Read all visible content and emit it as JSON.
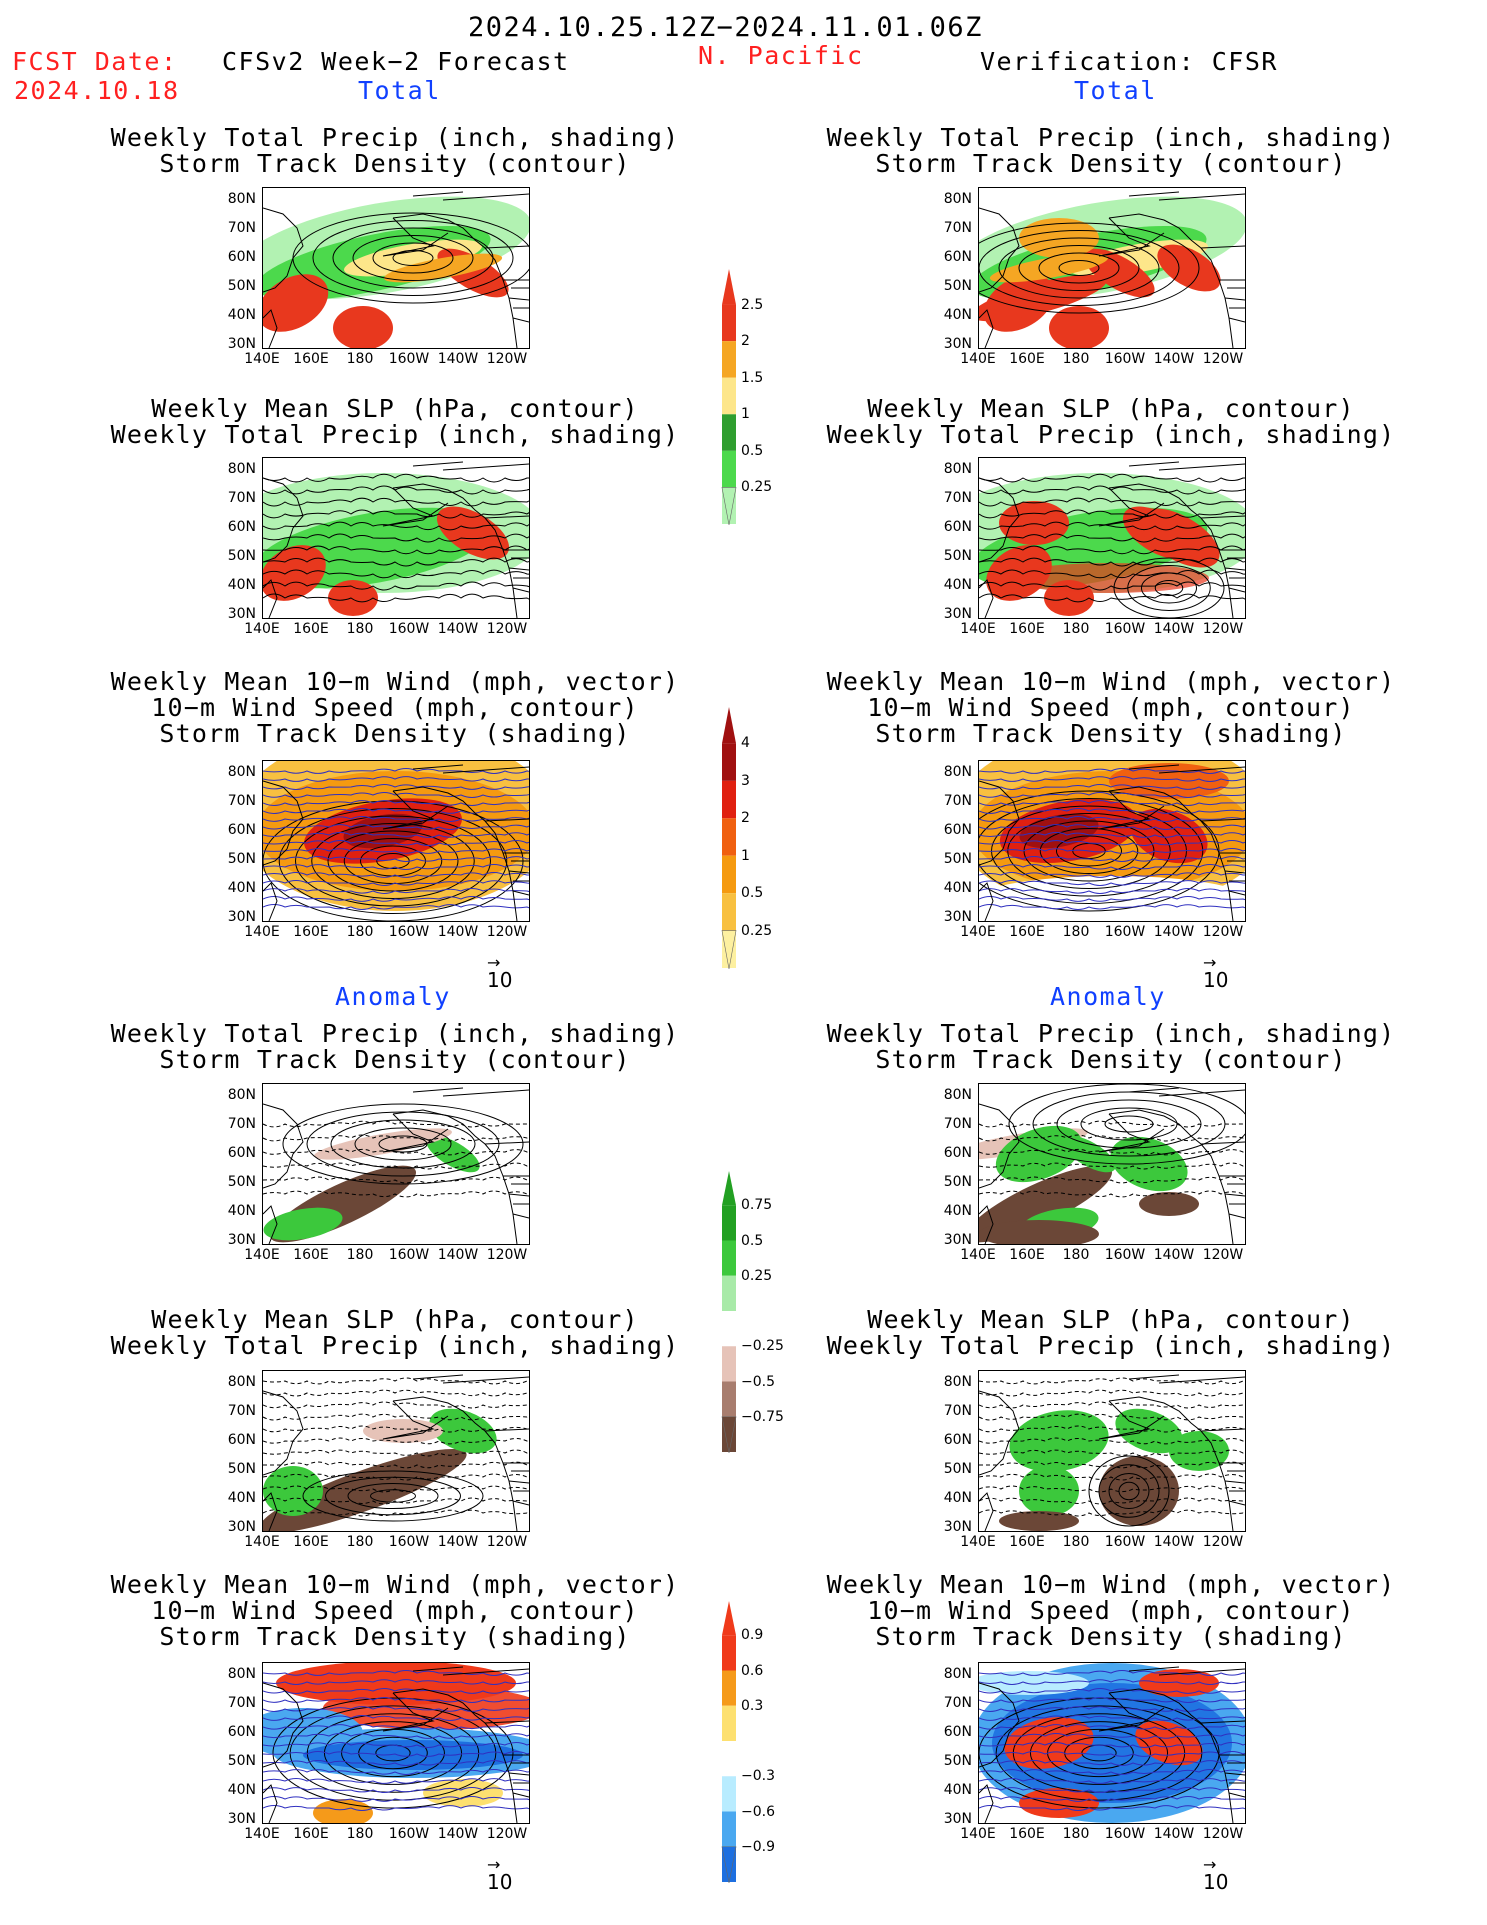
{
  "header": {
    "date_range": "2024.10.25.12Z−2024.11.01.06Z",
    "fcst_label": "FCST Date:",
    "fcst_date": "2024.10.18",
    "model": "CFSv2 Week−2 Forecast",
    "region": "N. Pacific",
    "verification": "Verification: CFSR"
  },
  "sections": {
    "total": "Total",
    "anomaly": "Anomaly"
  },
  "panel_titles": {
    "precip_storm": [
      "Weekly Total Precip (inch, shading)",
      "Storm Track Density (contour)"
    ],
    "slp_precip": [
      "Weekly Mean SLP (hPa, contour)",
      "Weekly Total Precip (inch, shading)"
    ],
    "wind_storm": [
      "Weekly Mean 10−m Wind (mph, vector)",
      "10−m Wind Speed (mph, contour)",
      "Storm Track Density (shading)"
    ]
  },
  "axes": {
    "lat_labels": [
      "80N",
      "70N",
      "60N",
      "50N",
      "40N",
      "30N"
    ],
    "lon_labels": [
      "140E",
      "160E",
      "180",
      "160W",
      "140W",
      "120W"
    ]
  },
  "vector_ref": "10",
  "colorbars": {
    "total_precip": {
      "labels": [
        "2.5",
        "2",
        "1.5",
        "1",
        "0.5",
        "0.25"
      ],
      "colors": [
        "#e8381e",
        "#f5a623",
        "#fde68a",
        "#2f9e2f",
        "#4cd94c",
        "#b2f2b2"
      ]
    },
    "total_storm": {
      "labels": [
        "4",
        "3",
        "2",
        "1",
        "0.5",
        "0.25"
      ],
      "colors": [
        "#a01010",
        "#e02010",
        "#f06010",
        "#f59a10",
        "#f8c040",
        "#fdf0a0"
      ]
    },
    "anom_precip": {
      "labels": [
        "0.75",
        "0.5",
        "0.25",
        "−0.25",
        "−0.5",
        "−0.75"
      ],
      "colors": [
        "#22a022",
        "#3cc83c",
        "#a8eaa8",
        "#ffffff",
        "#e6c3b8",
        "#a87d6e",
        "#6b4737"
      ]
    },
    "anom_storm": {
      "labels": [
        "0.9",
        "0.6",
        "0.3",
        "−0.3",
        "−0.6",
        "−0.9"
      ],
      "colors": [
        "#f03a1a",
        "#f59a1a",
        "#fde070",
        "#ffffff",
        "#b8ecff",
        "#4aa8f0",
        "#1d6fe0"
      ]
    }
  }
}
